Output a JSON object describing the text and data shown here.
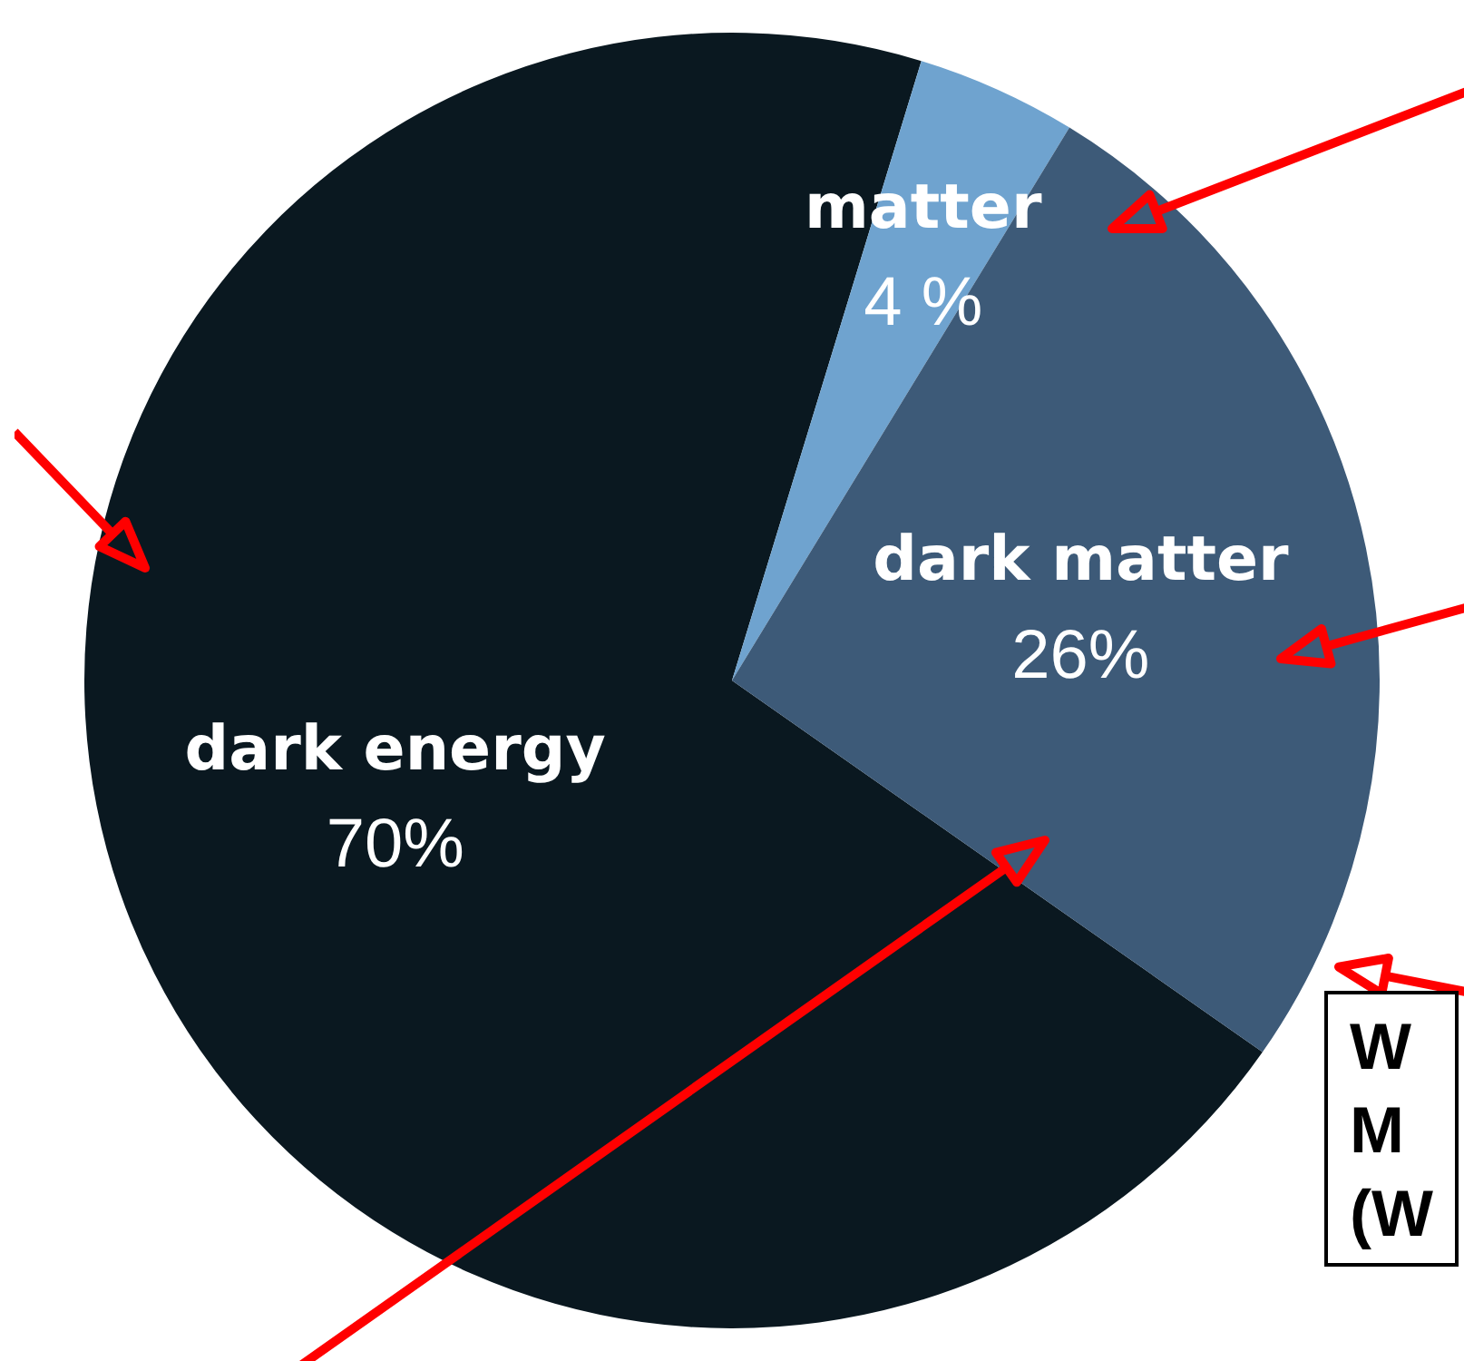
{
  "chart_data": {
    "type": "pie",
    "categories": [
      "dark energy",
      "matter",
      "dark matter"
    ],
    "values": [
      70,
      4,
      26
    ],
    "colors": [
      "#0a1820",
      "#6fa3cf",
      "#3d5a78"
    ],
    "value_labels": [
      "70%",
      "4 %",
      "26%"
    ],
    "legend": false,
    "annotations": [
      "W\nM\n(W"
    ]
  }
}
